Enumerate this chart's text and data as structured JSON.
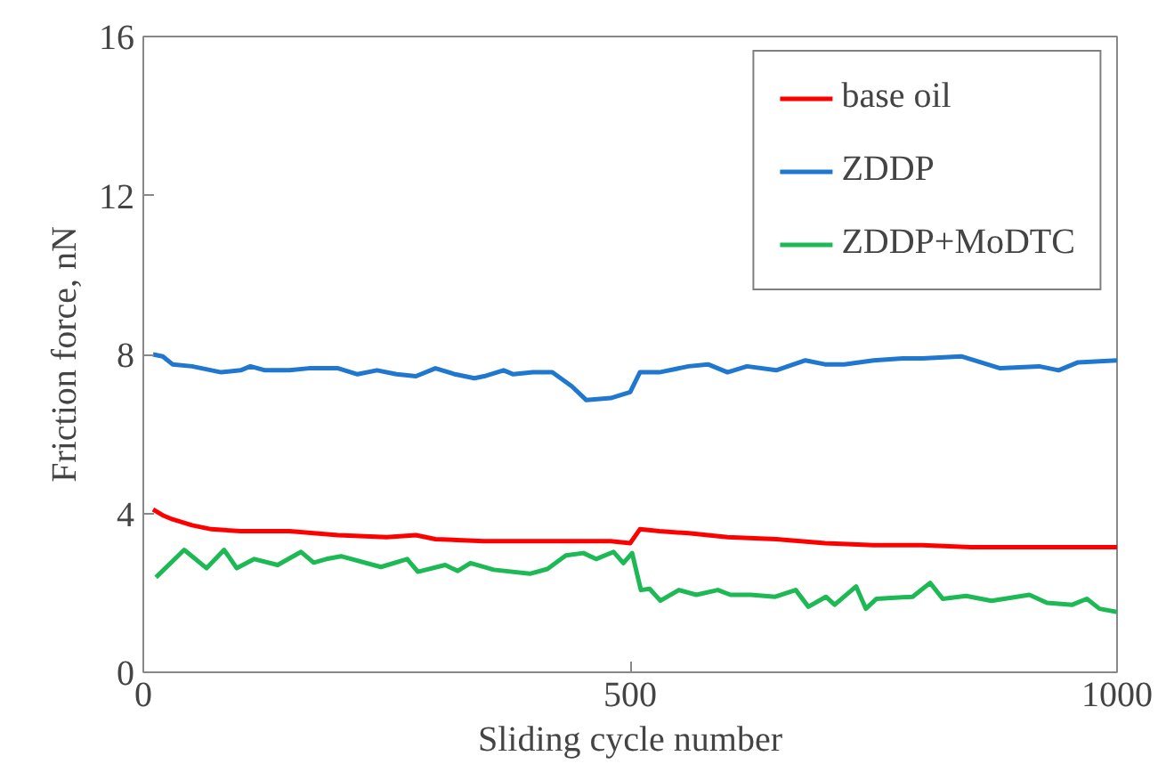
{
  "chart_data": {
    "type": "line",
    "xlabel": "Sliding cycle number",
    "ylabel": "Friction force, nN",
    "xlim": [
      0,
      1000
    ],
    "xticks": [
      0,
      500,
      1000
    ],
    "ylim": [
      0,
      16
    ],
    "yticks": [
      0,
      4,
      8,
      12,
      16
    ],
    "grid": false,
    "legend": "top right",
    "marker": "none",
    "line_style": "solid",
    "series": [
      {
        "name": "base oil",
        "color": "#ff0000",
        "x": [
          10,
          20,
          30,
          50,
          70,
          100,
          150,
          200,
          250,
          280,
          300,
          350,
          400,
          450,
          480,
          500,
          510,
          530,
          560,
          600,
          650,
          700,
          750,
          800,
          850,
          900,
          950,
          1000
        ],
        "values": [
          4.1,
          3.95,
          3.85,
          3.7,
          3.6,
          3.55,
          3.55,
          3.45,
          3.4,
          3.45,
          3.35,
          3.3,
          3.3,
          3.3,
          3.3,
          3.25,
          3.6,
          3.55,
          3.5,
          3.4,
          3.35,
          3.25,
          3.2,
          3.2,
          3.15,
          3.15,
          3.15,
          3.15
        ]
      },
      {
        "name": "ZDDP",
        "color": "#1f77d0",
        "x": [
          10,
          20,
          30,
          50,
          80,
          100,
          110,
          125,
          150,
          170,
          200,
          220,
          240,
          260,
          280,
          300,
          320,
          340,
          350,
          370,
          380,
          400,
          420,
          440,
          455,
          480,
          500,
          510,
          530,
          560,
          580,
          600,
          620,
          650,
          680,
          700,
          720,
          750,
          780,
          800,
          840,
          860,
          880,
          920,
          940,
          960,
          1000
        ],
        "values": [
          8.0,
          7.95,
          7.75,
          7.7,
          7.55,
          7.6,
          7.7,
          7.6,
          7.6,
          7.65,
          7.65,
          7.5,
          7.6,
          7.5,
          7.45,
          7.65,
          7.5,
          7.4,
          7.45,
          7.6,
          7.5,
          7.55,
          7.55,
          7.2,
          6.85,
          6.9,
          7.05,
          7.55,
          7.55,
          7.7,
          7.75,
          7.55,
          7.7,
          7.6,
          7.85,
          7.75,
          7.75,
          7.85,
          7.9,
          7.9,
          7.95,
          7.8,
          7.65,
          7.7,
          7.6,
          7.8,
          7.85
        ]
      },
      {
        "name": "ZDDP+MoDTC",
        "color": "#1db954",
        "x": [
          13,
          42,
          65,
          83,
          96,
          114,
          138,
          162,
          175,
          188,
          203,
          244,
          271,
          282,
          310,
          323,
          336,
          360,
          397,
          415,
          434,
          452,
          465,
          483,
          493,
          502,
          511,
          520,
          531,
          550,
          568,
          590,
          603,
          624,
          649,
          670,
          683,
          701,
          710,
          732,
          742,
          753,
          790,
          808,
          821,
          845,
          871,
          910,
          928,
          954,
          969,
          982,
          1000
        ],
        "values": [
          2.39,
          3.08,
          2.62,
          3.08,
          2.62,
          2.85,
          2.7,
          3.03,
          2.76,
          2.85,
          2.92,
          2.65,
          2.85,
          2.53,
          2.7,
          2.55,
          2.75,
          2.58,
          2.48,
          2.6,
          2.94,
          3.0,
          2.85,
          3.03,
          2.75,
          3.0,
          2.07,
          2.1,
          1.8,
          2.07,
          1.95,
          2.07,
          1.95,
          1.95,
          1.9,
          2.07,
          1.65,
          1.9,
          1.7,
          2.16,
          1.6,
          1.85,
          1.9,
          2.25,
          1.85,
          1.92,
          1.8,
          1.95,
          1.75,
          1.7,
          1.85,
          1.6,
          1.52
        ]
      }
    ]
  }
}
